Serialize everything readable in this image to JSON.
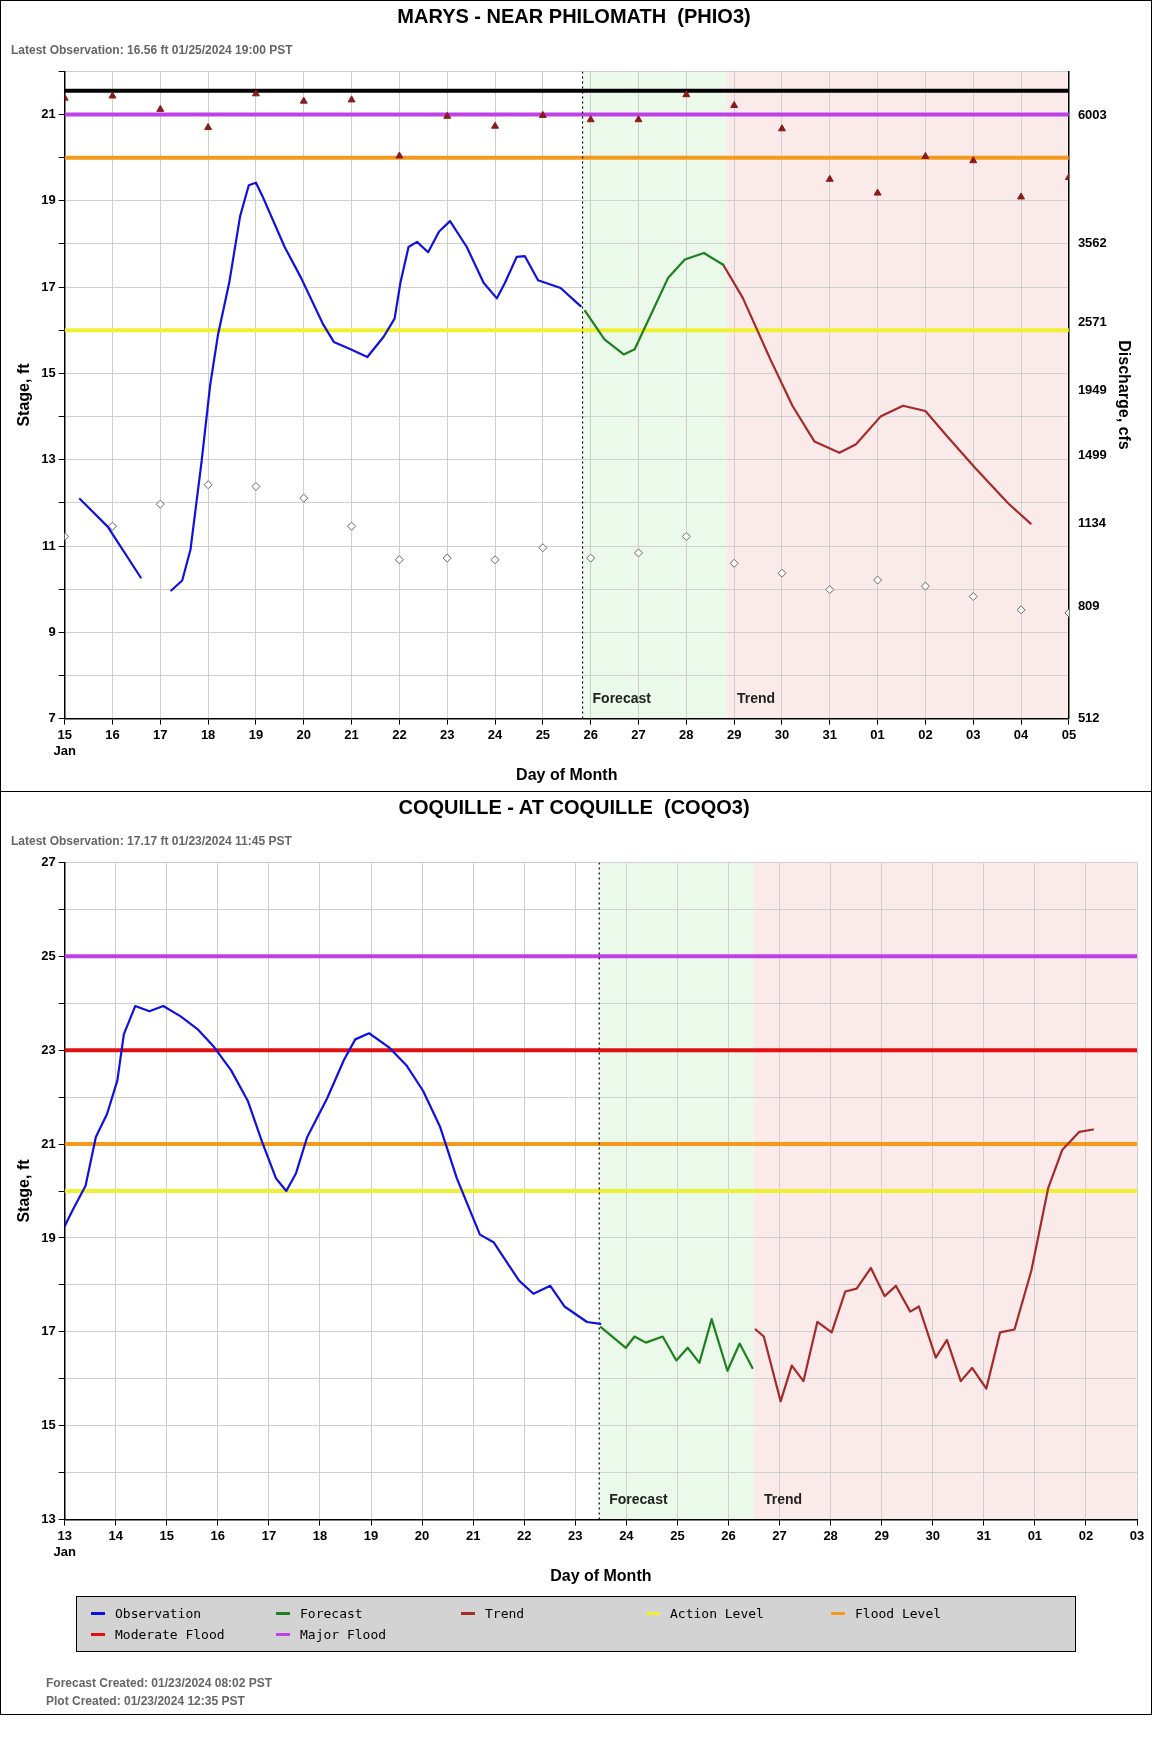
{
  "chart_data": [
    {
      "type": "line",
      "title": "MARYS - NEAR PHILOMATH  (PHIO3)",
      "subtitle": "Latest Observation: 16.56 ft 01/25/2024 19:00 PST",
      "xlabel": "Day of Month",
      "ylabel": "Stage, ft",
      "y2label": "Discharge, cfs",
      "xlim": [
        "2024-01-15",
        "2024-02-05"
      ],
      "xticks": [
        {
          "value": "2024-01-15",
          "label": "15\nJan"
        },
        {
          "value": "2024-01-16",
          "label": "16"
        },
        {
          "value": "2024-01-17",
          "label": "17"
        },
        {
          "value": "2024-01-18",
          "label": "18"
        },
        {
          "value": "2024-01-19",
          "label": "19"
        },
        {
          "value": "2024-01-20",
          "label": "20"
        },
        {
          "value": "2024-01-21",
          "label": "21"
        },
        {
          "value": "2024-01-22",
          "label": "22"
        },
        {
          "value": "2024-01-23",
          "label": "23"
        },
        {
          "value": "2024-01-24",
          "label": "24"
        },
        {
          "value": "2024-01-25",
          "label": "25"
        },
        {
          "value": "2024-01-26",
          "label": "26"
        },
        {
          "value": "2024-01-27",
          "label": "27"
        },
        {
          "value": "2024-01-28",
          "label": "28"
        },
        {
          "value": "2024-01-29",
          "label": "29"
        },
        {
          "value": "2024-01-30",
          "label": "30"
        },
        {
          "value": "2024-01-31",
          "label": "31"
        },
        {
          "value": "2024-02-01",
          "label": "01"
        },
        {
          "value": "2024-02-02",
          "label": "02"
        },
        {
          "value": "2024-02-03",
          "label": "03"
        },
        {
          "value": "2024-02-04",
          "label": "04"
        },
        {
          "value": "2024-02-05",
          "label": "05"
        }
      ],
      "ylim": [
        7,
        22
      ],
      "yticks": [
        7,
        {
          "value": 8,
          "label": null
        },
        9,
        {
          "value": 10,
          "label": null
        },
        11,
        {
          "value": 12,
          "label": null
        },
        13,
        {
          "value": 14,
          "label": null
        },
        15,
        {
          "value": 16,
          "label": null
        },
        17,
        {
          "value": 18,
          "label": null
        },
        19,
        {
          "value": 20,
          "label": null
        },
        21,
        {
          "value": 22,
          "label": null
        }
      ],
      "log": "y2",
      "y2lim": [
        512,
        7170
      ],
      "y2ticks": [
        512,
        809,
        1134,
        1499,
        1949,
        2571,
        3562,
        6003
      ],
      "grid": true,
      "series": [
        {
          "type": "line",
          "color": "#1010e0",
          "marker": "none",
          "x": [
            "2024-01-15T07:40",
            "2024-01-15T21:35",
            "2024-01-16T14:10",
            "2024-01-16T21:35",
            "2024-01-17T05:30",
            "2024-01-17T11:00",
            "2024-01-17T15:10",
            "2024-01-17T20:40",
            "2024-01-18T01:00",
            "2024-01-18T05:00",
            "2024-01-18T10:35",
            "2024-01-18T16:05",
            "2024-01-18T20:25",
            "2024-01-19T00:00",
            "2024-01-19T03:10",
            "2024-01-19T14:25",
            "2024-01-19T22:35",
            "2024-01-20T09:35",
            "2024-01-20T15:05",
            "2024-01-20T23:30",
            "2024-01-21T07:55",
            "2024-01-21T16:05",
            "2024-01-21T21:35",
            "2024-01-22T00:30",
            "2024-01-22T04:35",
            "2024-01-22T08:50",
            "2024-01-22T14:25",
            "2024-01-22T19:55",
            "2024-01-23T01:25",
            "2024-01-23T09:50",
            "2024-01-23T18:15",
            "2024-01-24T00:55",
            "2024-01-24T05:00",
            "2024-01-24T10:50",
            "2024-01-24T14:55",
            "2024-01-24T21:35",
            "2024-01-25T08:55",
            "2024-01-25T17:15",
            "2024-01-25T19:00"
          ],
          "values": [
            12.09,
            11.45,
            10.27,
            null,
            9.97,
            10.2,
            10.92,
            12.94,
            14.72,
            15.91,
            17.1,
            18.65,
            19.36,
            19.42,
            19.12,
            17.93,
            17.22,
            16.15,
            15.73,
            15.56,
            15.38,
            15.85,
            16.27,
            17.1,
            17.93,
            18.05,
            17.81,
            18.29,
            18.53,
            17.93,
            17.1,
            16.74,
            17.1,
            17.7,
            17.72,
            17.16,
            16.98,
            16.63,
            16.56
          ]
        },
        {
          "type": "line",
          "color": "#1e801e",
          "marker": "none",
          "x": [
            "2024-01-25T21:10",
            "2024-01-26T06:55",
            "2024-01-26T16:35",
            "2024-01-26T22:05",
            "2024-01-27T06:30",
            "2024-01-27T14:55",
            "2024-01-27T23:15",
            "2024-01-28T08:50",
            "2024-01-28T18:30"
          ],
          "values": [
            16.45,
            15.79,
            15.44,
            15.56,
            16.39,
            17.22,
            17.64,
            17.79,
            17.52
          ]
        },
        {
          "type": "line",
          "color": "#a52a2a",
          "marker": "none",
          "x": [
            "2024-01-28T18:30",
            "2024-01-29T04:20",
            "2024-01-29T18:15",
            "2024-01-30T05:15",
            "2024-01-30T16:20",
            "2024-01-31T04:50",
            "2024-01-31T13:10",
            "2024-02-01T01:40",
            "2024-02-01T12:45",
            "2024-02-02T00:00",
            "2024-02-02T11:00",
            "2024-02-03T00:45",
            "2024-02-03T17:30",
            "2024-02-04T04:50"
          ],
          "values": [
            17.52,
            16.75,
            15.32,
            14.25,
            13.42,
            13.16,
            13.36,
            14.01,
            14.25,
            14.13,
            13.54,
            12.82,
            11.99,
            11.52
          ]
        },
        {
          "type": "scatter",
          "color": "#8b1a1a",
          "marker": "triangle",
          "x": [
            "2024-01-15",
            "2024-01-16",
            "2024-01-17",
            "2024-01-18",
            "2024-01-19",
            "2024-01-20",
            "2024-01-21",
            "2024-01-22",
            "2024-01-23",
            "2024-01-24",
            "2024-01-25",
            "2024-01-26",
            "2024-01-27",
            "2024-01-28",
            "2024-01-29",
            "2024-01-30",
            "2024-01-31",
            "2024-02-01",
            "2024-02-02",
            "2024-02-03",
            "2024-02-04",
            "2024-02-05"
          ],
          "values": [
            21.38,
            21.43,
            21.12,
            20.7,
            21.48,
            21.31,
            21.34,
            20.04,
            20.96,
            20.73,
            20.98,
            20.88,
            20.88,
            21.46,
            21.21,
            20.67,
            19.5,
            19.18,
            20.03,
            19.93,
            19.09,
            19.54
          ]
        },
        {
          "type": "scatter",
          "color": "#666666",
          "marker": "diamond",
          "x": [
            "2024-01-15",
            "2024-01-16",
            "2024-01-17",
            "2024-01-18",
            "2024-01-19",
            "2024-01-20",
            "2024-01-21",
            "2024-01-22",
            "2024-01-23",
            "2024-01-24",
            "2024-01-25",
            "2024-01-26",
            "2024-01-27",
            "2024-01-28",
            "2024-01-29",
            "2024-01-30",
            "2024-01-31",
            "2024-02-01",
            "2024-02-02",
            "2024-02-03",
            "2024-02-04",
            "2024-02-05"
          ],
          "values": [
            11.22,
            11.46,
            11.97,
            12.42,
            12.38,
            12.11,
            11.46,
            10.68,
            10.72,
            10.68,
            10.96,
            10.72,
            10.84,
            11.22,
            10.6,
            10.37,
            9.99,
            10.21,
            10.07,
            9.83,
            9.52,
            9.45
          ]
        }
      ],
      "ref_lines": [
        {
          "axis": "y",
          "value": 21.55,
          "color": "#000000"
        },
        {
          "axis": "y",
          "value": 21,
          "color": "#c040e8"
        },
        {
          "axis": "y",
          "value": 20,
          "color": "#f39a1c"
        },
        {
          "axis": "y",
          "value": 16,
          "color": "#f0f032"
        },
        {
          "axis": "x",
          "value": "2024-01-25T19:55",
          "color": "#000000",
          "line_style": "dotted"
        }
      ],
      "bands": [
        {
          "axis": "x",
          "from": "2024-01-25T19:55",
          "to": "2024-01-28T20:25",
          "label": "Forecast",
          "color": "#eaf9ea"
        },
        {
          "axis": "x",
          "from": "2024-01-28T20:25",
          "to": "2024-02-05",
          "label": "Trend",
          "color": "#fbeaea"
        }
      ]
    },
    {
      "type": "line",
      "title": "COQUILLE - AT COQUILLE  (COQO3)",
      "subtitle": "Latest Observation: 17.17 ft 01/23/2024 11:45 PST",
      "xlabel": "Day of Month",
      "ylabel": "Stage, ft",
      "xlim": [
        "2024-01-13",
        "2024-02-03"
      ],
      "xticks": [
        {
          "value": "2024-01-13",
          "label": "13\nJan"
        },
        {
          "value": "2024-01-14",
          "label": "14"
        },
        {
          "value": "2024-01-15",
          "label": "15"
        },
        {
          "value": "2024-01-16",
          "label": "16"
        },
        {
          "value": "2024-01-17",
          "label": "17"
        },
        {
          "value": "2024-01-18",
          "label": "18"
        },
        {
          "value": "2024-01-19",
          "label": "19"
        },
        {
          "value": "2024-01-20",
          "label": "20"
        },
        {
          "value": "2024-01-21",
          "label": "21"
        },
        {
          "value": "2024-01-22",
          "label": "22"
        },
        {
          "value": "2024-01-23",
          "label": "23"
        },
        {
          "value": "2024-01-24",
          "label": "24"
        },
        {
          "value": "2024-01-25",
          "label": "25"
        },
        {
          "value": "2024-01-26",
          "label": "26"
        },
        {
          "value": "2024-01-27",
          "label": "27"
        },
        {
          "value": "2024-01-28",
          "label": "28"
        },
        {
          "value": "2024-01-29",
          "label": "29"
        },
        {
          "value": "2024-01-30",
          "label": "30"
        },
        {
          "value": "2024-01-31",
          "label": "31"
        },
        {
          "value": "2024-02-01",
          "label": "01"
        },
        {
          "value": "2024-02-02",
          "label": "02"
        },
        {
          "value": "2024-02-03",
          "label": "03"
        }
      ],
      "ylim": [
        13,
        27
      ],
      "yticks": [
        13,
        {
          "value": 14,
          "label": null
        },
        15,
        {
          "value": 16,
          "label": null
        },
        17,
        {
          "value": 18,
          "label": null
        },
        19,
        {
          "value": 20,
          "label": null
        },
        21,
        {
          "value": 22,
          "label": null
        },
        23,
        {
          "value": 24,
          "label": null
        },
        25,
        {
          "value": 26,
          "label": null
        },
        27
      ],
      "grid": true,
      "legend": "bottom",
      "series": [
        {
          "name": "Observation",
          "type": "line",
          "color": "#1010e0",
          "marker": "none",
          "x": [
            "2024-01-13T00:00",
            "2024-01-13T04:05",
            "2024-01-13T09:50",
            "2024-01-13T14:40",
            "2024-01-13T19:55",
            "2024-01-14T00:45",
            "2024-01-14T03:50",
            "2024-01-14T09:10",
            "2024-01-14T15:50",
            "2024-01-14T22:20",
            "2024-01-15T06:30",
            "2024-01-15T14:25",
            "2024-01-15T22:20",
            "2024-01-16T06:15",
            "2024-01-16T14:10",
            "2024-01-16T20:50",
            "2024-01-17T03:20",
            "2024-01-17T08:10",
            "2024-01-17T12:45",
            "2024-01-17T18:00",
            "2024-01-18T03:20",
            "2024-01-18T11:15",
            "2024-01-18T16:35",
            "2024-01-18T23:05",
            "2024-01-19T08:25",
            "2024-01-19T16:35",
            "2024-01-20T00:30",
            "2024-01-20T08:25",
            "2024-01-20T16:20",
            "2024-01-21T03:10",
            "2024-01-21T09:35",
            "2024-01-21T21:35",
            "2024-01-22T04:20",
            "2024-01-22T12:15",
            "2024-01-22T18:55",
            "2024-01-23T05:30",
            "2024-01-23T11:45"
          ],
          "values": [
            19.25,
            19.62,
            20.11,
            21.15,
            21.64,
            22.35,
            23.34,
            23.94,
            23.83,
            23.94,
            23.72,
            23.45,
            23.06,
            22.57,
            21.91,
            21.04,
            20.27,
            20.0,
            20.38,
            21.15,
            21.97,
            22.79,
            23.23,
            23.36,
            23.06,
            22.68,
            22.13,
            21.37,
            20.27,
            19.07,
            18.91,
            18.09,
            17.81,
            17.98,
            17.54,
            17.21,
            17.17
          ]
        },
        {
          "name": "Forecast",
          "type": "line",
          "color": "#1e801e",
          "marker": "none",
          "x": [
            "2024-01-23T12:00",
            "2024-01-23T23:45",
            "2024-01-24T03:50",
            "2024-01-24T09:10",
            "2024-01-24T17:05",
            "2024-01-24T23:30",
            "2024-01-25T04:50",
            "2024-01-25T10:20",
            "2024-01-25T16:05",
            "2024-01-25T23:30",
            "2024-01-26T05:15",
            "2024-01-26T11:15"
          ],
          "values": [
            17.1,
            16.66,
            16.9,
            16.77,
            16.9,
            16.39,
            16.66,
            16.34,
            17.27,
            16.17,
            16.75,
            16.23
          ]
        },
        {
          "name": "Trend",
          "type": "line",
          "color": "#a52a2a",
          "marker": "none",
          "x": [
            "2024-01-26T12:45",
            "2024-01-26T16:35",
            "2024-01-27T00:30",
            "2024-01-27T05:45",
            "2024-01-27T11:15",
            "2024-01-27T17:45",
            "2024-01-28T00:30",
            "2024-01-28T06:55",
            "2024-01-28T12:15",
            "2024-01-28T18:55",
            "2024-01-29T01:25",
            "2024-01-29T06:40",
            "2024-01-29T13:25",
            "2024-01-29T17:30",
            "2024-01-30T01:25",
            "2024-01-30T06:40",
            "2024-01-30T13:10",
            "2024-01-30T18:30",
            "2024-01-31T01:10",
            "2024-01-31T07:40",
            "2024-01-31T14:25",
            "2024-01-31T22:20",
            "2024-02-01T06:15",
            "2024-02-01T12:55",
            "2024-02-01T20:55",
            "2024-02-02T03:20"
          ],
          "values": [
            17.05,
            16.9,
            15.52,
            16.28,
            15.95,
            17.21,
            16.99,
            17.86,
            17.92,
            18.36,
            17.76,
            17.98,
            17.43,
            17.54,
            16.45,
            16.83,
            15.95,
            16.23,
            15.79,
            16.99,
            17.05,
            18.3,
            20.06,
            20.88,
            21.26,
            21.31
          ]
        }
      ],
      "ref_lines": [
        {
          "axis": "y",
          "value": 20,
          "label": "Action Level",
          "color": "#f0f032"
        },
        {
          "axis": "y",
          "value": 21,
          "label": "Flood Level",
          "color": "#f39a1c"
        },
        {
          "axis": "y",
          "value": 23,
          "label": "Moderate Flood",
          "color": "#e01010"
        },
        {
          "axis": "y",
          "value": 25,
          "label": "Major Flood",
          "color": "#c040e8"
        },
        {
          "axis": "x",
          "value": "2024-01-23T11:15",
          "color": "#000000",
          "line_style": "dotted"
        }
      ],
      "bands": [
        {
          "axis": "x",
          "from": "2024-01-23T11:15",
          "to": "2024-01-26T12:00",
          "label": "Forecast",
          "color": "#eaf9ea"
        },
        {
          "axis": "x",
          "from": "2024-01-26T12:00",
          "to": "2024-02-03",
          "label": "Trend",
          "color": "#fbeaea"
        }
      ],
      "annotations": [
        "Forecast Created: 01/23/2024 08:02 PST",
        "Plot Created: 01/23/2024 12:35 PST"
      ]
    }
  ]
}
